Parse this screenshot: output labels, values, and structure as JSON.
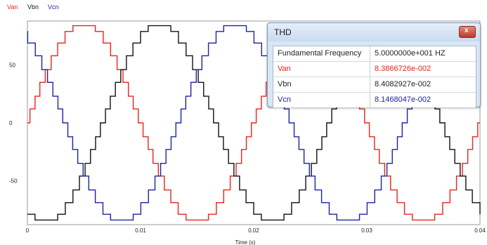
{
  "chart_data": {
    "type": "line",
    "xlabel": "Time (s)",
    "ylabel": "",
    "xlim": [
      0,
      0.04
    ],
    "ylim": [
      -88,
      88
    ],
    "x_ticks": [
      0,
      0.01,
      0.02,
      0.03,
      0.04
    ],
    "x_tick_labels": [
      "0",
      "0.01",
      "0.02",
      "0.03",
      "0.04"
    ],
    "y_ticks": [
      50,
      0,
      -50
    ],
    "y_tick_labels": [
      "50",
      "0",
      "-50"
    ],
    "grid": true,
    "legend_position": "top-left",
    "waveform": {
      "frequency_hz": 50,
      "amplitude": 84,
      "step_levels": [
        0,
        12,
        23,
        35,
        46,
        58,
        69,
        79,
        84
      ]
    },
    "series": [
      {
        "name": "Van",
        "color": "#e8241c",
        "phase_deg": 0
      },
      {
        "name": "Vbn",
        "color": "#111111",
        "phase_deg": -120
      },
      {
        "name": "Vcn",
        "color": "#1a23a8",
        "phase_deg": 120
      }
    ]
  },
  "thd_window": {
    "title": "THD",
    "close_glyph": "x",
    "rows": [
      {
        "label": "Fundamental Frequency",
        "value": "5.0000000e+001 HZ",
        "color": "#222222"
      },
      {
        "label": "Van",
        "value": "8.3866726e-002",
        "color": "#e8241c"
      },
      {
        "label": "Vbn",
        "value": "8.4082927e-002",
        "color": "#222222"
      },
      {
        "label": "Vcn",
        "value": "8.1468047e-002",
        "color": "#1a23a8"
      }
    ]
  }
}
